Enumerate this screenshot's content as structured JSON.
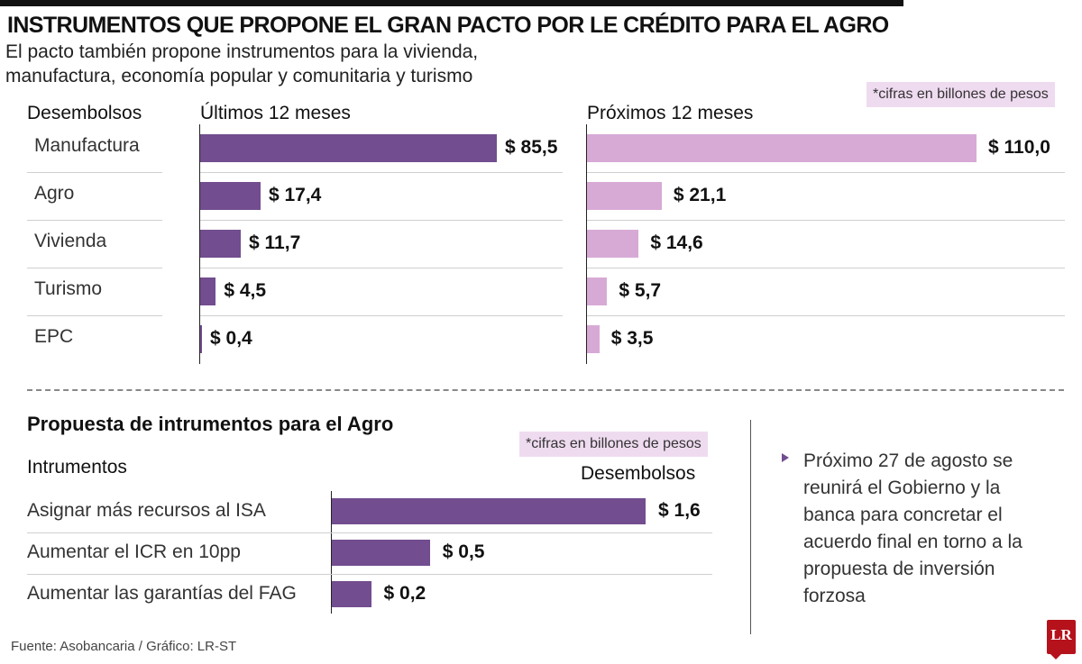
{
  "header": {
    "title": "INSTRUMENTOS QUE PROPONE EL GRAN PACTO POR LE CRÉDITO PARA EL AGRO",
    "subtitle": "El pacto también propone instrumentos para la vivienda, manufactura, economía popular y comunitaria y turismo"
  },
  "chart_data": [
    {
      "type": "bar",
      "orientation": "horizontal",
      "unit_note": "*cifras en billones de pesos",
      "row_header": "Desembolsos",
      "categories": [
        "Manufactura",
        "Agro",
        "Vivienda",
        "Turismo",
        "EPC"
      ],
      "series": [
        {
          "name": "Últimos 12 meses",
          "color": "#724d8f",
          "values": [
            85.5,
            17.4,
            11.7,
            4.5,
            0.4
          ],
          "labels": [
            "$ 85,5",
            "$ 17,4",
            "$ 11,7",
            "$ 4,5",
            "$ 0,4"
          ]
        },
        {
          "name": "Próximos 12 meses",
          "color": "#d7aad6",
          "values": [
            110.0,
            21.1,
            14.6,
            5.7,
            3.5
          ],
          "labels": [
            "$ 110,0",
            "$ 21,1",
            "$ 14,6",
            "$ 5,7",
            "$ 3,5"
          ]
        }
      ]
    },
    {
      "type": "bar",
      "orientation": "horizontal",
      "title": "Propuesta de intrumentos para el Agro",
      "unit_note": "*cifras en billones de pesos",
      "row_header": "Intrumentos",
      "value_header": "Desembolsos",
      "categories": [
        "Asignar más recursos al ISA",
        "Aumentar el ICR en 10pp",
        "Aumentar las garantías del FAG"
      ],
      "values": [
        1.6,
        0.5,
        0.2
      ],
      "labels": [
        "$ 1,6",
        "$ 0,5",
        "$ 0,2"
      ],
      "color": "#724d8f"
    }
  ],
  "side_note": "Próximo 27 de agosto se reunirá el Gobierno y la banca para concretar el acuerdo final en torno a la propuesta de inversión forzosa",
  "footer": {
    "source": "Fuente: Asobancaria / Gráfico: LR-ST",
    "logo": "LR"
  }
}
